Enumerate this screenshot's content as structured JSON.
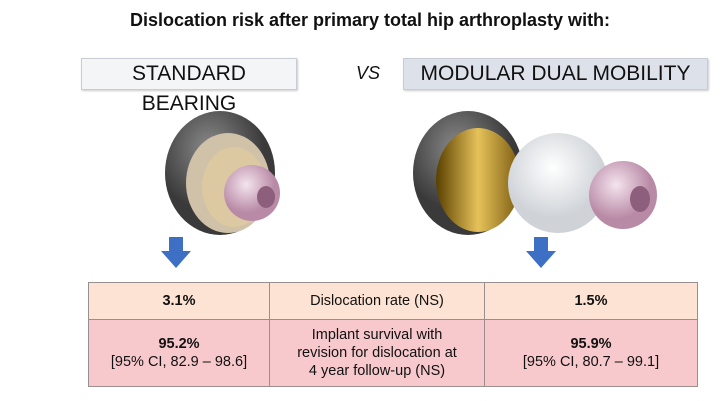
{
  "title": "Dislocation risk after primary total hip arthroplasty with:",
  "left_label": "STANDARD BEARING",
  "vs": "VS",
  "right_label": "MODULAR DUAL MOBILITY",
  "colors": {
    "row1": "#fce3d3",
    "row2": "#f7c9cc",
    "arrow": "#3d6fc4"
  },
  "table": {
    "rows": [
      {
        "left": "3.1%",
        "middle": "Dislocation rate (NS)",
        "right": "1.5%"
      },
      {
        "left_value": "95.2%",
        "left_ci": "[95% CI, 82.9 – 98.6]",
        "middle_lines": [
          "Implant survival with",
          "revision for dislocation at",
          "4 year follow-up (NS)"
        ],
        "right_value": "95.9%",
        "right_ci": "[95% CI, 80.7 – 99.1]"
      }
    ]
  }
}
